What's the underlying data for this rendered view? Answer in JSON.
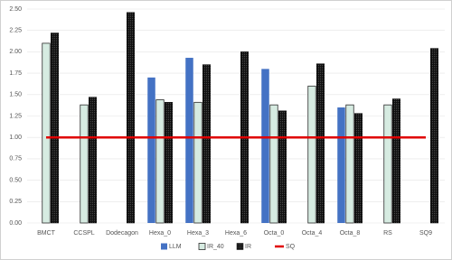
{
  "chart_data": {
    "type": "bar",
    "categories": [
      "BMCT",
      "CCSPL",
      "Dodecagon",
      "Hexa_0",
      "Hexa_3",
      "Hexa_6",
      "Octa_0",
      "Octa_4",
      "Octa_8",
      "RS",
      "SQ9"
    ],
    "series": [
      {
        "name": "LLM",
        "color": "#4472c4",
        "values": [
          null,
          null,
          null,
          1.7,
          1.93,
          null,
          1.8,
          null,
          1.35,
          null,
          null
        ]
      },
      {
        "name": "IR_40",
        "color": "#d6ebe1",
        "values": [
          2.1,
          1.38,
          null,
          1.44,
          1.41,
          null,
          1.38,
          1.6,
          1.38,
          1.38,
          null
        ]
      },
      {
        "name": "IR",
        "color": "#111111",
        "values": [
          2.22,
          1.47,
          2.46,
          1.41,
          1.85,
          2.0,
          1.31,
          1.86,
          1.28,
          1.45,
          2.04
        ]
      },
      {
        "name": "SQ",
        "color": "#e00000",
        "type": "line",
        "values": [
          1,
          1,
          1,
          1,
          1,
          1,
          1,
          1,
          1,
          1,
          1
        ]
      }
    ],
    "ylim": [
      0,
      2.5
    ],
    "yticks": [
      {
        "value": 0,
        "label": "0.00"
      },
      {
        "value": 0.25,
        "label": "0.25"
      },
      {
        "value": 0.5,
        "label": "0.50"
      },
      {
        "value": 0.75,
        "label": "0.75"
      },
      {
        "value": 1,
        "label": "1.00"
      },
      {
        "value": 1.25,
        "label": "1.25"
      },
      {
        "value": 1.5,
        "label": "1.50"
      },
      {
        "value": 1.75,
        "label": "1.75"
      },
      {
        "value": 2,
        "label": "2.00"
      },
      {
        "value": 2.25,
        "label": "2.25"
      },
      {
        "value": 2.5,
        "label": "2.50"
      }
    ],
    "grid": true
  }
}
